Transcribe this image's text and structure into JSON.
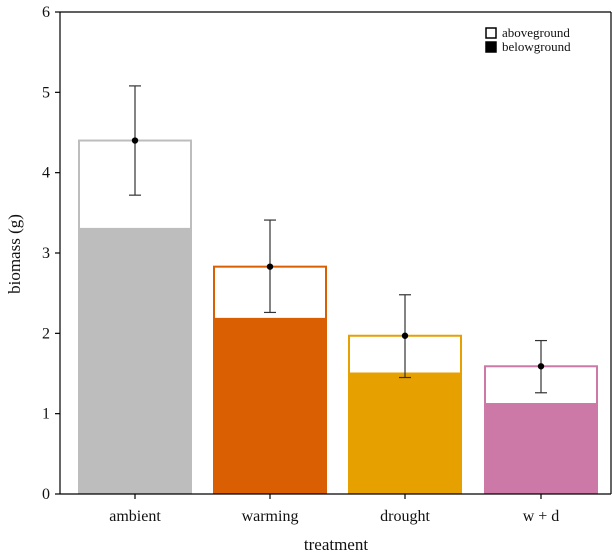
{
  "chart_data": {
    "type": "bar",
    "stacked": true,
    "categories": [
      "ambient",
      "warming",
      "drought",
      "w + d"
    ],
    "xlabel": "treatment",
    "ylabel": "biomass (g)",
    "ylim": [
      0,
      6
    ],
    "yticks": [
      0,
      1,
      2,
      3,
      4,
      5,
      6
    ],
    "legend": {
      "placement": "top-right",
      "entries": [
        {
          "label": "aboveground",
          "style": "hollow"
        },
        {
          "label": "belowground",
          "style": "filled"
        }
      ]
    },
    "grid": false,
    "colors": [
      "#bdbdbd",
      "#d95f02",
      "#e6a000",
      "#cc79a7"
    ],
    "series": [
      {
        "name": "belowground",
        "values": [
          3.3,
          2.18,
          1.5,
          1.12
        ]
      },
      {
        "name": "aboveground",
        "values": [
          1.1,
          0.65,
          0.47,
          0.47
        ]
      }
    ],
    "totals": [
      4.4,
      2.83,
      1.97,
      1.59
    ],
    "error_bars": {
      "low": [
        3.72,
        2.26,
        1.45,
        1.26
      ],
      "high": [
        5.08,
        3.41,
        2.48,
        1.91
      ]
    }
  }
}
